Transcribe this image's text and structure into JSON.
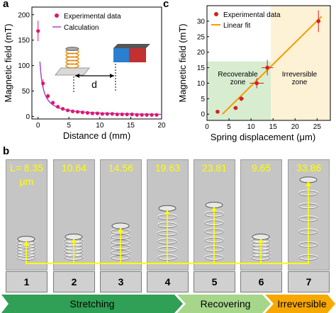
{
  "panel_a": {
    "letter": "a",
    "chart_data": {
      "type": "scatter",
      "xlabel": "Distance d (mm)",
      "ylabel": "Magnetic field (mT)",
      "xlim": [
        -1,
        20
      ],
      "ylim": [
        -5,
        215
      ],
      "xticks": [
        0,
        5,
        10,
        15,
        20
      ],
      "yticks": [
        0,
        50,
        100,
        150,
        200
      ],
      "legend_position": "top-right",
      "series": [
        {
          "name": "Experimental data",
          "kind": "points",
          "color": "#e0186c",
          "x": [
            0,
            0.8,
            1.6,
            2.4,
            3.2,
            4.0,
            4.8,
            5.6,
            6.4,
            7.2,
            8.0,
            8.8,
            9.6,
            10.4,
            11.2,
            12.0,
            12.8,
            13.6,
            14.4,
            15.2,
            16.0,
            16.8,
            17.6,
            18.4,
            19.2
          ],
          "y": [
            168,
            65,
            40,
            27,
            19,
            15,
            12,
            10,
            9,
            8,
            7,
            6,
            6,
            5,
            5,
            5,
            4,
            4,
            4,
            4,
            3,
            3,
            3,
            3,
            3
          ]
        },
        {
          "name": "Calculation",
          "kind": "line",
          "color": "#a64ac9"
        }
      ],
      "inset_label": "d"
    }
  },
  "panel_c": {
    "letter": "c",
    "chart_data": {
      "type": "scatter",
      "xlabel": "Spring displacement (μm)",
      "ylabel": "Magnetic field (mT)",
      "xlim": [
        0,
        28
      ],
      "ylim": [
        -2,
        35
      ],
      "xticks": [
        0,
        5,
        10,
        15,
        20,
        25
      ],
      "yticks": [
        0,
        5,
        10,
        15,
        20,
        25,
        30
      ],
      "legend_position": "top-left",
      "series": [
        {
          "name": "Experimental data",
          "kind": "points",
          "color": "#d42020",
          "x": [
            2.4,
            6.5,
            7.8,
            11.3,
            13.7,
            25.3
          ],
          "y": [
            0.8,
            2.0,
            5.0,
            10.0,
            15.0,
            30.0
          ],
          "xerr": [
            0.3,
            0.5,
            0.6,
            1.6,
            1.3,
            0.3
          ],
          "yerr": [
            0.3,
            0.5,
            0.8,
            1.6,
            2.5,
            3.5
          ]
        },
        {
          "name": "Linear fit",
          "kind": "line",
          "color": "#f0a000",
          "x": [
            3.5,
            26
          ],
          "y": [
            0,
            31.5
          ]
        }
      ],
      "zones": [
        {
          "label_lines": [
            "Recoverable",
            "zone"
          ],
          "x_range": [
            0,
            14.5
          ],
          "color": "#d8ecd0"
        },
        {
          "label_lines": [
            "Irreversible",
            "zone"
          ],
          "x_range": [
            14.5,
            28
          ],
          "color": "#fdf1d6"
        }
      ]
    }
  },
  "panel_b": {
    "letter": "b",
    "frames": [
      {
        "value": "L= 8.35",
        "unit": "μm",
        "number": "1",
        "top_frac": 0.72
      },
      {
        "value": "10.64",
        "unit": "",
        "number": "2",
        "top_frac": 0.7
      },
      {
        "value": "14.56",
        "unit": "",
        "number": "3",
        "top_frac": 0.6
      },
      {
        "value": "19.63",
        "unit": "",
        "number": "4",
        "top_frac": 0.44
      },
      {
        "value": "23.81",
        "unit": "",
        "number": "5",
        "top_frac": 0.41
      },
      {
        "value": "9.65",
        "unit": "",
        "number": "6",
        "top_frac": 0.7
      },
      {
        "value": "33.86",
        "unit": "",
        "number": "7",
        "top_frac": 0.18
      }
    ],
    "stages": [
      {
        "label": "Stretching",
        "color": "#2fa055"
      },
      {
        "label": "Recovering",
        "color": "#a5d68a"
      },
      {
        "label": "Irreversible",
        "color": "#f6a800"
      }
    ]
  }
}
